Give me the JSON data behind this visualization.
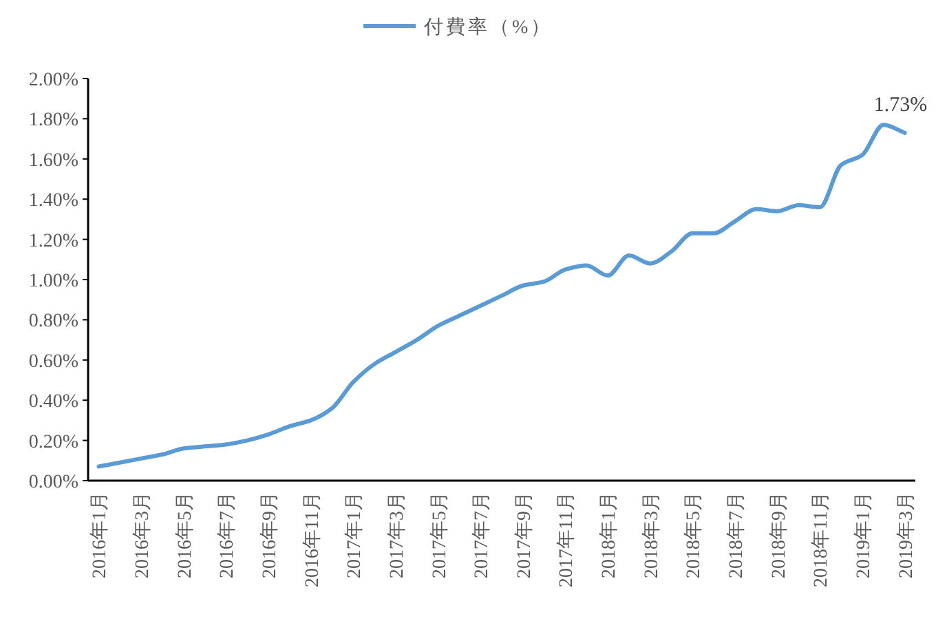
{
  "chart_data": {
    "type": "line",
    "categories": [
      "2016年1月",
      null,
      "2016年3月",
      null,
      "2016年5月",
      null,
      "2016年7月",
      null,
      "2016年9月",
      null,
      "2016年11月",
      null,
      "2017年1月",
      null,
      "2017年3月",
      null,
      "2017年5月",
      null,
      "2017年7月",
      null,
      "2017年9月",
      null,
      "2017年11月",
      null,
      "2018年1月",
      null,
      "2018年3月",
      null,
      "2018年5月",
      null,
      "2018年7月",
      null,
      "2018年9月",
      null,
      "2018年11月",
      null,
      "2019年1月",
      null,
      "2019年3月"
    ],
    "series": [
      {
        "name": "付費率（%）",
        "color": "#5b9bd5",
        "values": [
          0.07,
          0.09,
          0.11,
          0.13,
          0.16,
          0.17,
          0.18,
          0.2,
          0.23,
          0.27,
          0.3,
          0.36,
          0.49,
          0.58,
          0.64,
          0.7,
          0.77,
          0.82,
          0.87,
          0.92,
          0.97,
          0.99,
          1.05,
          1.07,
          1.02,
          1.12,
          1.08,
          1.14,
          1.23,
          1.23,
          1.29,
          1.35,
          1.34,
          1.37,
          1.36,
          1.57,
          1.62,
          1.77,
          1.73
        ]
      }
    ],
    "ylim": [
      0,
      2
    ],
    "yticks": [
      {
        "value": 0,
        "label": "0.00%"
      },
      {
        "value": 0.2,
        "label": "0.20%"
      },
      {
        "value": 0.4,
        "label": "0.40%"
      },
      {
        "value": 0.6,
        "label": "0.60%"
      },
      {
        "value": 0.8,
        "label": "0.80%"
      },
      {
        "value": 1.0,
        "label": "1.00%"
      },
      {
        "value": 1.2,
        "label": "1.20%"
      },
      {
        "value": 1.4,
        "label": "1.40%"
      },
      {
        "value": 1.6,
        "label": "1.60%"
      },
      {
        "value": 1.8,
        "label": "1.80%"
      },
      {
        "value": 2.0,
        "label": "2.00%"
      }
    ],
    "legend": "top",
    "annotations": [
      {
        "text": "1.73%",
        "x": "2019年3月",
        "y": 1.73
      }
    ]
  }
}
